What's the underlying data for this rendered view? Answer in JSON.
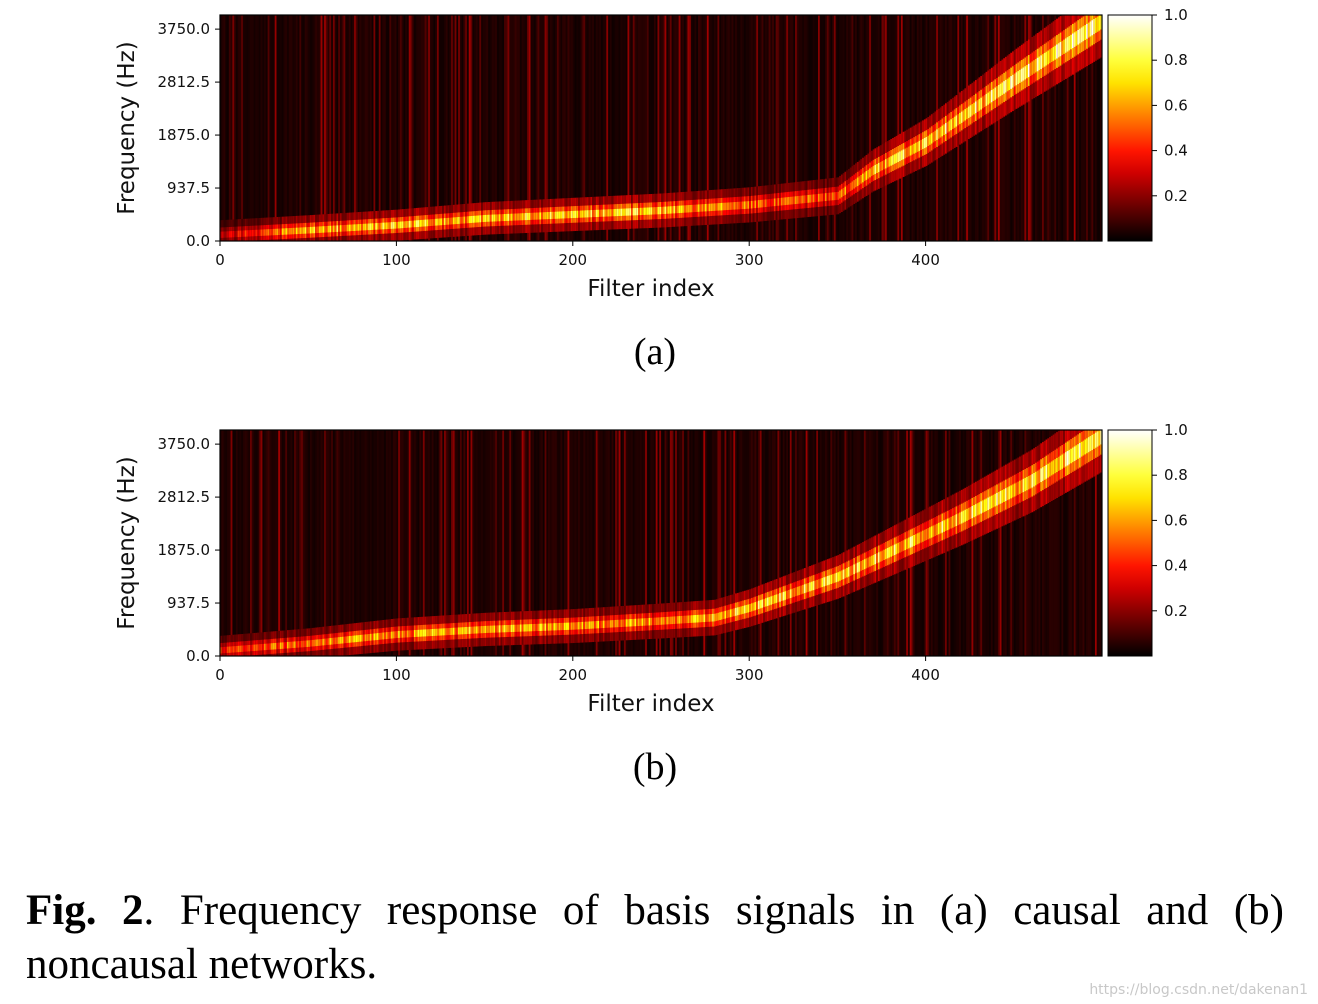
{
  "chart_data": [
    {
      "type": "heatmap",
      "panel": "(a)",
      "title": "",
      "xlabel": "Filter index",
      "ylabel": "Frequency (Hz)",
      "x_ticks": [
        "0",
        "100",
        "200",
        "300",
        "400"
      ],
      "x_tick_values": [
        0,
        100,
        200,
        300,
        400
      ],
      "xlim": [
        0,
        500
      ],
      "y_ticks": [
        "0.0",
        "937.5",
        "1875.0",
        "2812.5",
        "3750.0"
      ],
      "y_tick_values": [
        0,
        937.5,
        1875,
        2812.5,
        3750
      ],
      "ylim": [
        0,
        4000
      ],
      "colorbar": {
        "ticks": [
          "0.2",
          "0.4",
          "0.6",
          "0.8",
          "1.0"
        ],
        "tick_values": [
          0.2,
          0.4,
          0.6,
          0.8,
          1.0
        ],
        "range": [
          0,
          1.0
        ],
        "colormap": "hot"
      },
      "ridge": {
        "filter_index": [
          0,
          50,
          100,
          150,
          200,
          250,
          300,
          350,
          370,
          400,
          450,
          500
        ],
        "frequency_hz": [
          110,
          190,
          280,
          400,
          470,
          540,
          640,
          800,
          1250,
          1750,
          2850,
          3900
        ],
        "peak_intensity": [
          0.35,
          0.75,
          0.8,
          0.75,
          0.85,
          0.8,
          0.6,
          0.55,
          0.8,
          0.85,
          0.9,
          0.95
        ]
      }
    },
    {
      "type": "heatmap",
      "panel": "(b)",
      "title": "",
      "xlabel": "Filter index",
      "ylabel": "Frequency (Hz)",
      "x_ticks": [
        "0",
        "100",
        "200",
        "300",
        "400"
      ],
      "x_tick_values": [
        0,
        100,
        200,
        300,
        400
      ],
      "xlim": [
        0,
        500
      ],
      "y_ticks": [
        "0.0",
        "937.5",
        "1875.0",
        "2812.5",
        "3750.0"
      ],
      "y_tick_values": [
        0,
        937.5,
        1875,
        2812.5,
        3750
      ],
      "ylim": [
        0,
        4000
      ],
      "colorbar": {
        "ticks": [
          "0.2",
          "0.4",
          "0.6",
          "0.8",
          "1.0"
        ],
        "tick_values": [
          0.2,
          0.4,
          0.6,
          0.8,
          1.0
        ],
        "range": [
          0,
          1.0
        ],
        "colormap": "hot"
      },
      "ridge": {
        "filter_index": [
          0,
          50,
          100,
          150,
          200,
          250,
          280,
          300,
          350,
          380,
          420,
          460,
          500
        ],
        "frequency_hz": [
          100,
          220,
          380,
          470,
          530,
          620,
          680,
          850,
          1400,
          1850,
          2450,
          3100,
          3900
        ],
        "peak_intensity": [
          0.5,
          0.65,
          0.7,
          0.75,
          0.7,
          0.7,
          0.75,
          0.85,
          0.8,
          0.85,
          0.85,
          0.85,
          0.95
        ]
      }
    }
  ],
  "panels": {
    "a": {
      "label": "(a)"
    },
    "b": {
      "label": "(b)"
    }
  },
  "caption": {
    "prefix": "Fig. 2",
    "text": ".  Frequency response of basis signals in (a) causal and (b) noncausal networks."
  },
  "watermark": "https://blog.csdn.net/dakenan1",
  "colors": {
    "frame": "#000000",
    "background": "#ffffff"
  }
}
